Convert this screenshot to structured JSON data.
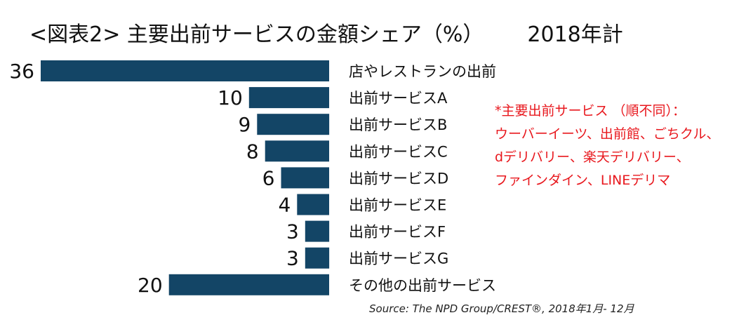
{
  "title": {
    "main": "<図表2> 主要出前サービスの金額シェア（%）",
    "period": "2018年計"
  },
  "chart_data": {
    "type": "bar",
    "orientation": "horizontal",
    "categories": [
      "店やレストランの出前",
      "出前サービスA",
      "出前サービスB",
      "出前サービスC",
      "出前サービスD",
      "出前サービスE",
      "出前サービスF",
      "出前サービスG",
      "その他の出前サービス"
    ],
    "values": [
      36,
      10,
      9,
      8,
      6,
      4,
      3,
      3,
      20
    ],
    "xlim": [
      0,
      36
    ],
    "bar_direction": "right-to-left",
    "bar_color": "#134566",
    "grid": false,
    "legend": "none"
  },
  "note_lines": [
    "*主要出前サービス （順不同）：",
    "ウーバーイーツ、出前館、ごちクル、",
    "dデリバリー、楽天デリバリー、",
    "ファインダイン、LINEデリマ"
  ],
  "note_color": "#e8171d",
  "source": "Source: The NPD Group/CREST®, 2018年1月- 12月"
}
